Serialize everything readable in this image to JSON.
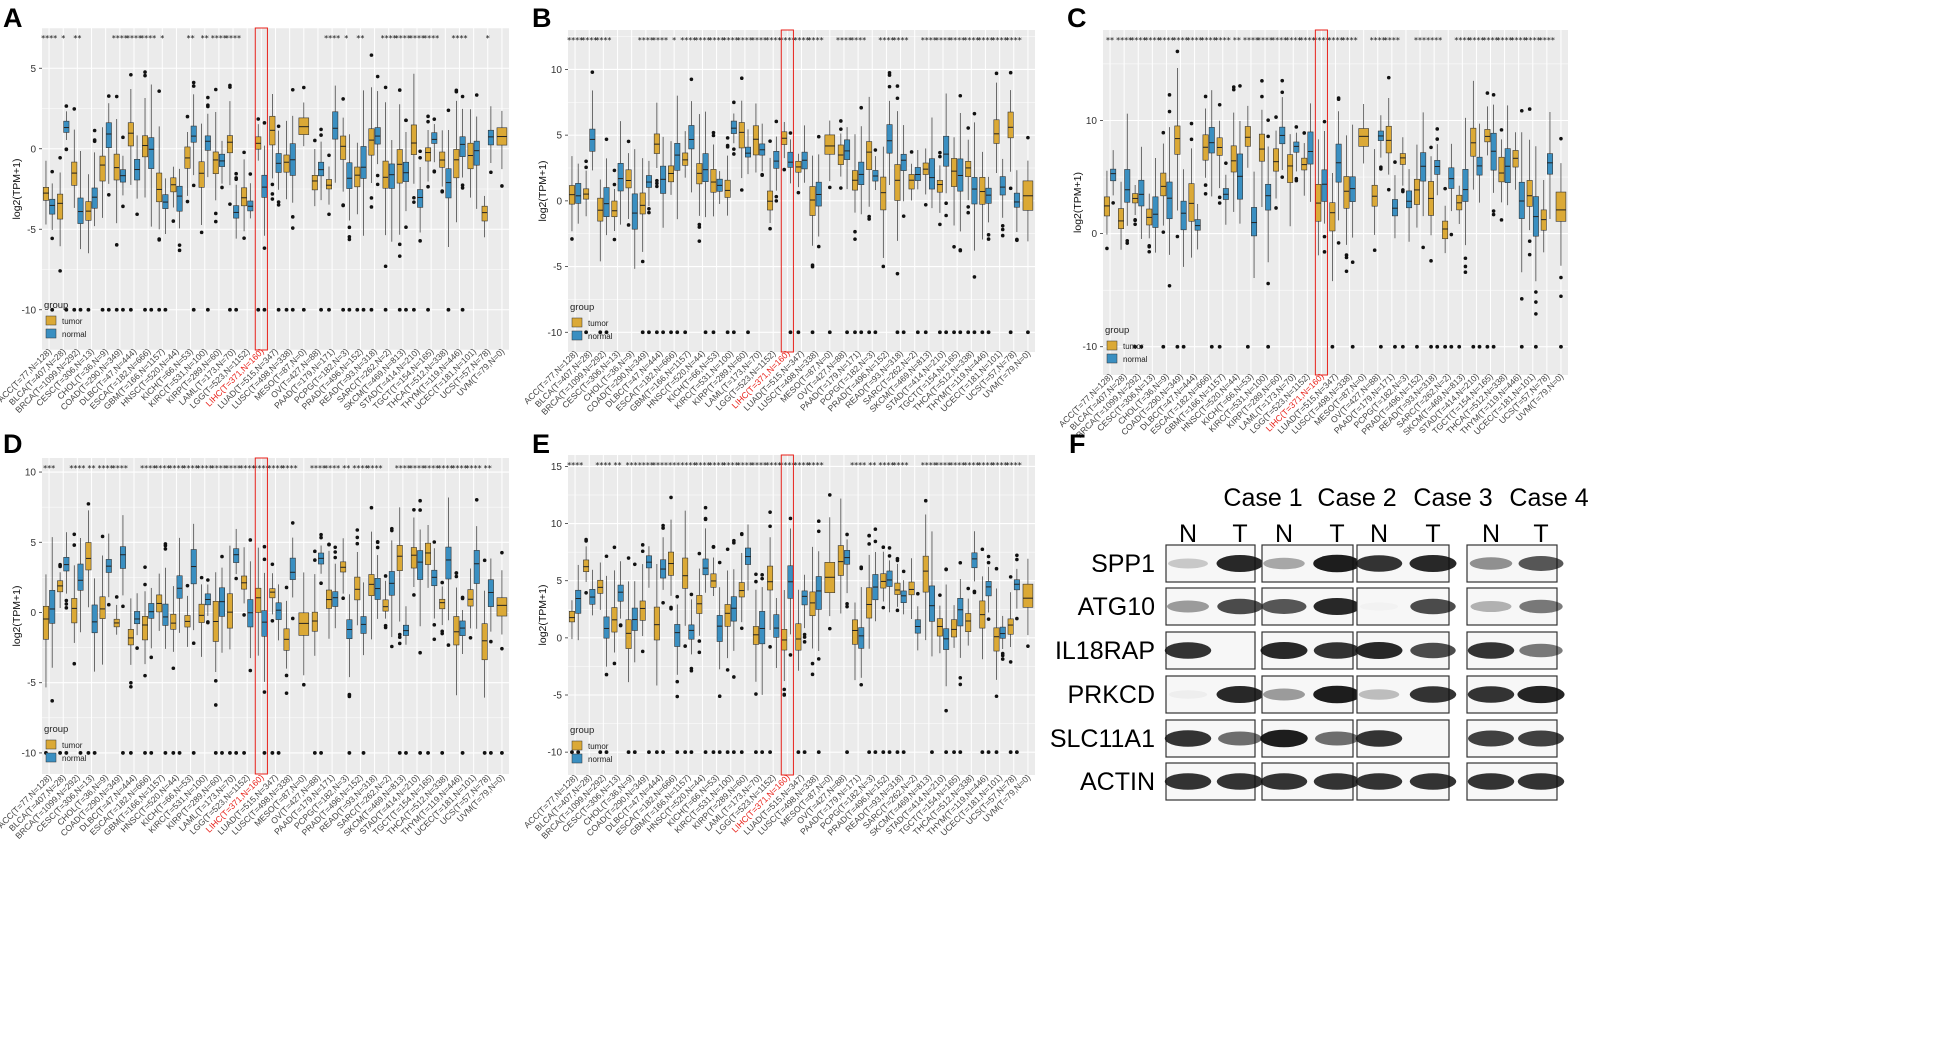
{
  "panels": [
    {
      "letter": "A",
      "ylabel": "log2(TPM+1)",
      "yticks": [
        {
          "v": 5,
          "t": "5"
        },
        {
          "v": 0,
          "t": "0"
        },
        {
          "v": -5,
          "t": "-5"
        },
        {
          "v": -10,
          "t": "-10"
        }
      ],
      "ymin": -12.5,
      "ymax": 7.5,
      "seed": 11
    },
    {
      "letter": "B",
      "ylabel": "log2(TPM+1)",
      "yticks": [
        {
          "v": 10,
          "t": "10"
        },
        {
          "v": 5,
          "t": "5"
        },
        {
          "v": 0,
          "t": "0"
        },
        {
          "v": -5,
          "t": "-5"
        },
        {
          "v": -10,
          "t": "-10"
        }
      ],
      "ymin": -11.5,
      "ymax": 13,
      "seed": 23
    },
    {
      "letter": "C",
      "ylabel": "log2(TPM+1)",
      "yticks": [
        {
          "v": 10,
          "t": "10"
        },
        {
          "v": 0,
          "t": "0"
        },
        {
          "v": -10,
          "t": "-10"
        }
      ],
      "ymin": -12.5,
      "ymax": 18,
      "seed": 37
    },
    {
      "letter": "D",
      "ylabel": "log2(TPM+1)",
      "yticks": [
        {
          "v": 10,
          "t": "10"
        },
        {
          "v": 5,
          "t": "5"
        },
        {
          "v": 0,
          "t": "0"
        },
        {
          "v": -5,
          "t": "-5"
        },
        {
          "v": -10,
          "t": "-10"
        }
      ],
      "ymin": -11.5,
      "ymax": 11,
      "seed": 41
    },
    {
      "letter": "E",
      "ylabel": "log2(TPM+1)",
      "yticks": [
        {
          "v": 15,
          "t": "15"
        },
        {
          "v": 10,
          "t": "10"
        },
        {
          "v": 5,
          "t": "5"
        },
        {
          "v": 0,
          "t": "0"
        },
        {
          "v": -5,
          "t": "-5"
        },
        {
          "v": -10,
          "t": "-10"
        }
      ],
      "ymin": -12,
      "ymax": 16,
      "seed": 53
    }
  ],
  "cancer_labels": [
    "ACC(T=77,N=128)",
    "BLCA(T=407,N=28)",
    "BRCA(T=1099,N=292)",
    "CESC(T=306,N=13)",
    "CHOL(T=36,N=9)",
    "COAD(T=290,N=349)",
    "DLBC(T=47,N=444)",
    "ESCA(T=182,N=666)",
    "GBM(T=166,N=1157)",
    "HNSC(T=520,N=44)",
    "KICH(T=66,N=53)",
    "KIRC(T=531,N=100)",
    "KIRP(T=289,N=60)",
    "LAML(T=173,N=70)",
    "LGG(T=523,N=1152)",
    "LIHC(T=371,N=160)",
    "LUAD(T=515,N=347)",
    "LUSC(T=498,N=338)",
    "MESO(T=87,N=0)",
    "OV(T=427,N=88)",
    "PAAD(T=179,N=171)",
    "PCPG(T=182,N=3)",
    "PRAD(T=496,N=152)",
    "READ(T=93,N=318)",
    "SARC(T=262,N=2)",
    "SKCM(T=469,N=813)",
    "STAD(T=414,N=210)",
    "TGCT(T=154,N=165)",
    "THCA(T=512,N=338)",
    "THYM(T=119,N=446)",
    "UCEC(T=181,N=101)",
    "UCS(T=57,N=78)",
    "UVM(T=79,N=0)"
  ],
  "highlight_label": "LIHC(T=371,N=160)",
  "significance": {
    "A": [
      "****",
      "*",
      "**",
      "",
      "",
      "****",
      "****",
      "****",
      "*",
      "",
      "**",
      "**",
      "****",
      "****",
      "",
      "",
      "",
      "",
      "",
      "",
      "****",
      "*",
      "**",
      "",
      "****",
      "****",
      "****",
      "****",
      "",
      "****",
      "",
      "*",
      ""
    ],
    "B": [
      "****",
      "****",
      "****",
      "",
      "",
      "****",
      "****",
      "*",
      "****",
      "****",
      "****",
      "****",
      "****",
      "****",
      "****",
      "****",
      "****",
      "****",
      "",
      "****",
      "****",
      "",
      "****",
      "****",
      "",
      "****",
      "****",
      "****",
      "****",
      "****",
      "****",
      "****",
      ""
    ],
    "C": [
      "**",
      "****",
      "****",
      "****",
      "****",
      "****",
      "****",
      "****",
      "****",
      "**",
      "****",
      "****",
      "****",
      "****",
      "****",
      "****",
      "****",
      "****",
      "",
      "****",
      "****",
      "",
      "***",
      "****",
      "",
      "****",
      "****",
      "****",
      "****",
      "****",
      "****",
      "****",
      ""
    ],
    "D": [
      "***",
      "",
      "****",
      "**",
      "****",
      "****",
      "",
      "****",
      "****",
      "****",
      "****",
      "****",
      "****",
      "****",
      "****",
      "****",
      "****",
      "****",
      "",
      "****",
      "****",
      "**",
      "****",
      "****",
      "",
      "****",
      "****",
      "****",
      "****",
      "****",
      "****",
      "**",
      ""
    ],
    "E": [
      "****",
      "",
      "****",
      "**",
      "***",
      "****",
      "****",
      "***",
      "****",
      "****",
      "****",
      "****",
      "****",
      "****",
      "****",
      "****",
      "****",
      "****",
      "",
      "",
      "****",
      "**",
      "****",
      "****",
      "",
      "****",
      "****",
      "****",
      "****",
      "****",
      "****",
      "****",
      ""
    ]
  },
  "legend": {
    "title": "group",
    "items": [
      "tumor",
      "normal"
    ]
  },
  "colors": {
    "tumor": "#DBA936",
    "normal": "#3A8FC1",
    "panel_bg": "#EBEBEB",
    "grid": "#FFFFFF",
    "highlight": "#E8221B"
  },
  "western": {
    "letter": "F",
    "cases": [
      "Case 1",
      "Case 2",
      "Case 3",
      "Case 4"
    ],
    "lane_labels": [
      "N",
      "T"
    ],
    "proteins": [
      "SPP1",
      "ATG10",
      "IL18RAP",
      "PRKCD",
      "SLC11A1",
      "ACTIN"
    ],
    "band_intensity": [
      [
        [
          0.2,
          0.9
        ],
        [
          0.35,
          0.95
        ],
        [
          0.85,
          0.9
        ],
        [
          0.45,
          0.7
        ]
      ],
      [
        [
          0.4,
          0.75
        ],
        [
          0.7,
          0.9
        ],
        [
          0.02,
          0.75
        ],
        [
          0.3,
          0.55
        ]
      ],
      [
        [
          0.85,
          0.0
        ],
        [
          0.9,
          0.85
        ],
        [
          0.9,
          0.75
        ],
        [
          0.85,
          0.55
        ]
      ],
      [
        [
          0.04,
          0.9
        ],
        [
          0.4,
          0.95
        ],
        [
          0.25,
          0.85
        ],
        [
          0.85,
          0.92
        ]
      ],
      [
        [
          0.85,
          0.6
        ],
        [
          0.95,
          0.6
        ],
        [
          0.85,
          0.0
        ],
        [
          0.8,
          0.8
        ]
      ],
      [
        [
          0.85,
          0.85
        ],
        [
          0.85,
          0.85
        ],
        [
          0.85,
          0.85
        ],
        [
          0.85,
          0.85
        ]
      ]
    ]
  }
}
